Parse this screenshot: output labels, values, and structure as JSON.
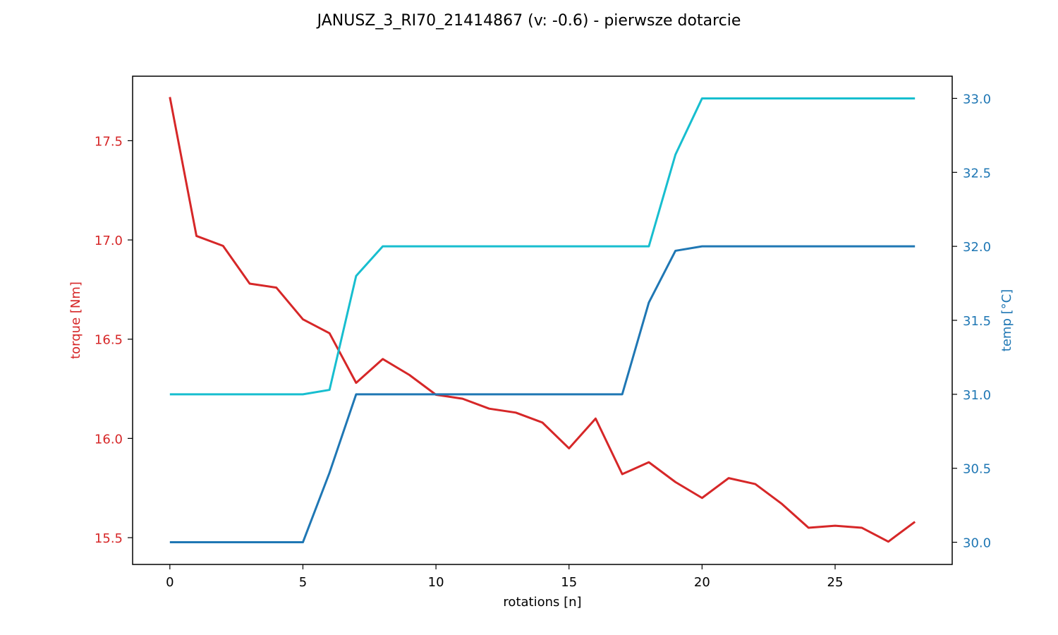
{
  "chart_data": {
    "type": "line",
    "title": "JANUSZ_3_RI70_21414867 (v: -0.6) - pierwsze dotarcie",
    "xlabel": "rotations [n]",
    "ylabel_left": "torque [Nm]",
    "ylabel_right": "temp [°C]",
    "xlim": [
      -1.4,
      29.4
    ],
    "ylim_left": [
      15.365,
      17.825
    ],
    "ylim_right": [
      29.85,
      33.15
    ],
    "x_ticks": [
      0,
      5,
      10,
      15,
      20,
      25
    ],
    "x_tick_labels": [
      "0",
      "5",
      "10",
      "15",
      "20",
      "25"
    ],
    "left_ticks": [
      15.5,
      16.0,
      16.5,
      17.0,
      17.5
    ],
    "left_tick_labels": [
      "15.5",
      "16.0",
      "16.5",
      "17.0",
      "17.5"
    ],
    "right_ticks": [
      30.0,
      30.5,
      31.0,
      31.5,
      32.0,
      32.5,
      33.0
    ],
    "right_tick_labels": [
      "30.0",
      "30.5",
      "31.0",
      "31.5",
      "32.0",
      "32.5",
      "33.0"
    ],
    "grid": false,
    "colors": {
      "torque": "#d62728",
      "temp_axis": "#1f77b4",
      "temp_a": "#17becf",
      "temp_b": "#1f77b4",
      "frame": "#000000"
    },
    "x": [
      0,
      1,
      2,
      3,
      4,
      5,
      6,
      7,
      8,
      9,
      10,
      11,
      12,
      13,
      14,
      15,
      16,
      17,
      18,
      19,
      20,
      21,
      22,
      23,
      24,
      25,
      26,
      27,
      28
    ],
    "series": [
      {
        "axis": "left",
        "color": "#d62728",
        "values": [
          17.72,
          17.02,
          16.97,
          16.78,
          16.76,
          16.6,
          16.53,
          16.28,
          16.4,
          16.32,
          16.22,
          16.2,
          16.15,
          16.13,
          16.08,
          15.95,
          16.1,
          15.82,
          15.88,
          15.78,
          15.7,
          15.8,
          15.77,
          15.67,
          15.55,
          15.56,
          15.55,
          15.48,
          15.58
        ]
      },
      {
        "axis": "right",
        "color": "#17becf",
        "values": [
          31.0,
          31.0,
          31.0,
          31.0,
          31.0,
          31.0,
          31.03,
          31.8,
          32.0,
          32.0,
          32.0,
          32.0,
          32.0,
          32.0,
          32.0,
          32.0,
          32.0,
          32.0,
          32.0,
          32.62,
          33.0,
          33.0,
          33.0,
          33.0,
          33.0,
          33.0,
          33.0,
          33.0,
          33.0
        ]
      },
      {
        "axis": "right",
        "color": "#1f77b4",
        "values": [
          30.0,
          30.0,
          30.0,
          30.0,
          30.0,
          30.0,
          30.47,
          31.0,
          31.0,
          31.0,
          31.0,
          31.0,
          31.0,
          31.0,
          31.0,
          31.0,
          31.0,
          31.0,
          31.62,
          31.97,
          32.0,
          32.0,
          32.0,
          32.0,
          32.0,
          32.0,
          32.0,
          32.0,
          32.0
        ]
      }
    ]
  }
}
